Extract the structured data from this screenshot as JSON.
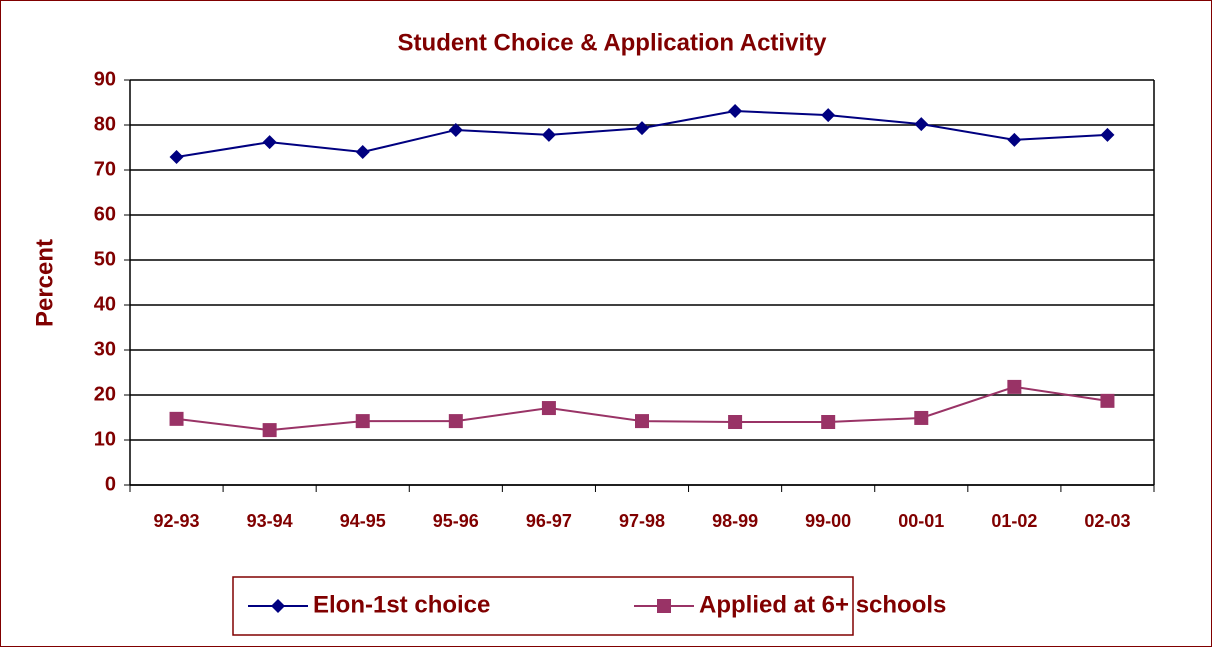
{
  "chart_data": {
    "type": "line",
    "title": "Student Choice & Application Activity",
    "ylabel": "Percent",
    "categories": [
      "92-93",
      "93-94",
      "94-95",
      "95-96",
      "96-97",
      "97-98",
      "98-99",
      "99-00",
      "00-01",
      "01-02",
      "02-03"
    ],
    "series": [
      {
        "name": "Elon-1st choice",
        "color": "#000080",
        "marker": "diamond",
        "values": [
          72.9,
          76.2,
          74,
          78.9,
          77.8,
          79.3,
          83.1,
          82.2,
          80.2,
          76.7,
          77.8
        ]
      },
      {
        "name": "Applied at 6+ schools",
        "color": "#993366",
        "marker": "square",
        "values": [
          14.7,
          12.2,
          14.2,
          14.2,
          17.1,
          14.2,
          14,
          14,
          14.9,
          21.8,
          18.7
        ]
      }
    ],
    "ylim": [
      0,
      90
    ],
    "yticks": [
      0,
      10,
      20,
      30,
      40,
      50,
      60,
      70,
      80,
      90
    ],
    "grid": true,
    "legend": "bottom"
  }
}
